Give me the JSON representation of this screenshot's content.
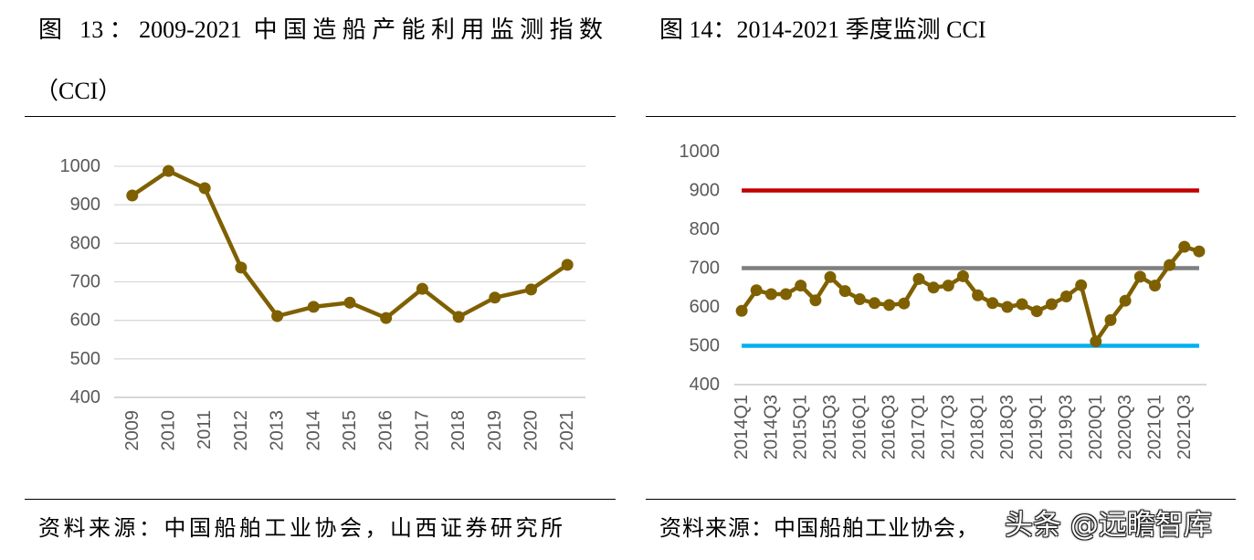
{
  "chart_data": [
    {
      "type": "line",
      "title_lines": [
        "图 13：2009-2021 中国造船产能利用监测指数",
        "（CCI）"
      ],
      "source": "资料来源：中国船舶工业协会，山西证券研究所",
      "categories": [
        "2009",
        "2010",
        "2011",
        "2012",
        "2013",
        "2014",
        "2015",
        "2016",
        "2017",
        "2018",
        "2019",
        "2020",
        "2021"
      ],
      "values": [
        924,
        988,
        943,
        737,
        611,
        635,
        646,
        606,
        682,
        609,
        659,
        680,
        744
      ],
      "ylim": [
        400,
        1000
      ],
      "yticks": [
        400,
        500,
        600,
        700,
        800,
        900,
        1000
      ],
      "grid": true,
      "markers": true,
      "color": "#7F6000"
    },
    {
      "type": "line",
      "title": "图 14：2014-2021 季度监测 CCI",
      "source": "资料来源：中国船舶工业协会，",
      "x_tick_labels": [
        "2014Q1",
        "2014Q3",
        "2015Q1",
        "2015Q3",
        "2016Q1",
        "2016Q3",
        "2017Q1",
        "2017Q3",
        "2018Q1",
        "2018Q3",
        "2019Q1",
        "2019Q3",
        "2020Q1",
        "2020Q3",
        "2021Q1",
        "2021Q3"
      ],
      "values": [
        590,
        643,
        633,
        633,
        655,
        617,
        677,
        641,
        620,
        610,
        605,
        609,
        672,
        650,
        655,
        679,
        630,
        610,
        600,
        607,
        589,
        607,
        627,
        656,
        511,
        566,
        616,
        678,
        655,
        708,
        755,
        743
      ],
      "ylim": [
        400,
        1000
      ],
      "yticks": [
        400,
        500,
        600,
        700,
        800,
        900,
        1000
      ],
      "grid": false,
      "markers": true,
      "color": "#7F6000",
      "reference_lines": [
        {
          "value": 900,
          "color": "#C00000"
        },
        {
          "value": 700,
          "color": "#7F7F7F"
        },
        {
          "value": 500,
          "color": "#00B0F0"
        }
      ]
    }
  ],
  "watermark": "头条 @远瞻智库",
  "colors": {
    "grid": "#D9D9D9",
    "axis": "#BFBFBF",
    "tick_text": "#595959",
    "rule": "#000000"
  }
}
